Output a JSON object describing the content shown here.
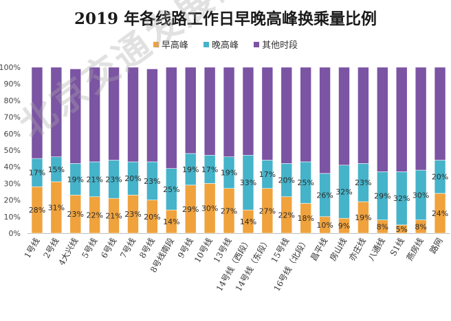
{
  "chart_data": {
    "type": "bar",
    "stacked": true,
    "title": "2019 年各线路工作日早晚高峰换乘量比例",
    "legend_position": "top",
    "ylim": [
      0,
      100
    ],
    "y_ticks": [
      "0%",
      "10%",
      "20%",
      "30%",
      "40%",
      "50%",
      "60%",
      "70%",
      "80%",
      "90%",
      "100%"
    ],
    "grid": false,
    "categories": [
      "1号线",
      "2号线",
      "4大兴线",
      "5号线",
      "6号线",
      "7号线",
      "8号线",
      "8号线南段",
      "9号线",
      "10号线",
      "13号线",
      "14号线（西段）",
      "14号线（东段）",
      "15号线",
      "16号线（北段）",
      "昌平线",
      "房山线",
      "亦庄线",
      "八通线",
      "S1线",
      "燕房线",
      "路网"
    ],
    "series": [
      {
        "name": "早高峰",
        "color": "#f0a23c",
        "values": [
          28,
          31,
          23,
          22,
          21,
          23,
          20,
          14,
          29,
          30,
          27,
          14,
          27,
          22,
          18,
          10,
          9,
          19,
          8,
          5,
          8,
          24
        ],
        "labels": [
          "28%",
          "31%",
          "23%",
          "22%",
          "21%",
          "23%",
          "20%",
          "14%",
          "29%",
          "30%",
          "27%",
          "14%",
          "27%",
          "22%",
          "18%",
          "10%",
          "9%",
          "19%",
          "8%",
          "5%",
          "8%",
          "24%"
        ]
      },
      {
        "name": "晚高峰",
        "color": "#45b3c9",
        "values": [
          17,
          15,
          19,
          21,
          23,
          20,
          23,
          25,
          19,
          17,
          19,
          33,
          17,
          20,
          25,
          26,
          32,
          23,
          29,
          32,
          30,
          20
        ],
        "labels": [
          "17%",
          "15%",
          "19%",
          "21%",
          "23%",
          "20%",
          "23%",
          "25%",
          "19%",
          "17%",
          "19%",
          "33%",
          "17%",
          "20%",
          "25%",
          "26%",
          "32%",
          "23%",
          "29%",
          "32%",
          "30%",
          "20%"
        ]
      },
      {
        "name": "其他时段",
        "color": "#7b54a3",
        "values": [
          55,
          54,
          57,
          57,
          56,
          57,
          56,
          61,
          52,
          53,
          54,
          53,
          56,
          58,
          57,
          64,
          59,
          58,
          63,
          63,
          62,
          56
        ]
      }
    ]
  },
  "watermark": "北京交通发展研究院"
}
